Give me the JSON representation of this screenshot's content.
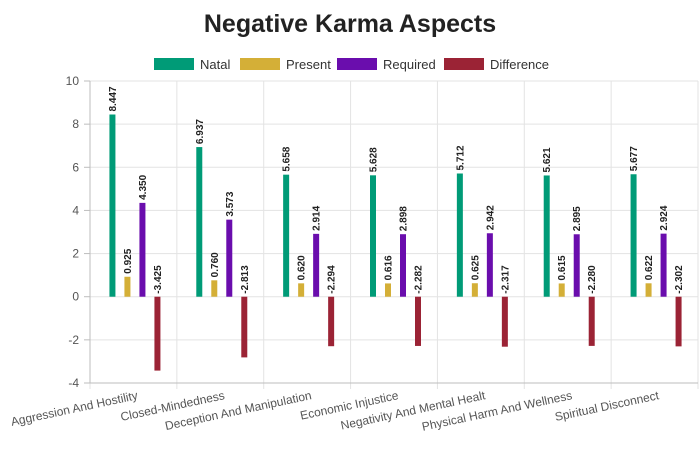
{
  "chart_data": {
    "type": "bar",
    "title": "Negative Karma Aspects",
    "categories": [
      "Aggression And Hostility",
      "Closed-Mindedness",
      "Deception And Manipulation",
      "Economic Injustice",
      "Negativity And Mental Healt",
      "Physical Harm And Wellness",
      "Spiritual Disconnect"
    ],
    "series": [
      {
        "name": "Natal",
        "color": "#009b77",
        "values": [
          8.447,
          6.937,
          5.658,
          5.628,
          5.712,
          5.621,
          5.677
        ],
        "labels": [
          "8.447",
          "6.937",
          "5.658",
          "5.628",
          "5.712",
          "5.621",
          "5.677"
        ]
      },
      {
        "name": "Present",
        "color": "#d4af37",
        "values": [
          0.925,
          0.76,
          0.62,
          0.616,
          0.625,
          0.615,
          0.622
        ],
        "labels": [
          "0.925",
          "0.760",
          "0.620",
          "0.616",
          "0.625",
          "0.615",
          "0.622"
        ]
      },
      {
        "name": "Required",
        "color": "#6a0dad",
        "values": [
          4.35,
          3.573,
          2.914,
          2.898,
          2.942,
          2.895,
          2.924
        ],
        "labels": [
          "4.350",
          "3.573",
          "2.914",
          "2.898",
          "2.942",
          "2.895",
          "2.924"
        ]
      },
      {
        "name": "Difference",
        "color": "#9b2335",
        "values": [
          -3.425,
          -2.813,
          -2.294,
          -2.282,
          -2.317,
          -2.28,
          -2.302
        ],
        "labels": [
          "-3.425",
          "-2.813",
          "-2.294",
          "-2.282",
          "-2.317",
          "-2.280",
          "-2.302"
        ]
      }
    ],
    "xlabel": "",
    "ylabel": "",
    "ylim": [
      -4,
      10
    ],
    "yticks": [
      -4,
      -2,
      0,
      2,
      4,
      6,
      8,
      10
    ],
    "ytick_labels": [
      "-4",
      "-2",
      "0",
      "2",
      "4",
      "6",
      "8",
      "10"
    ],
    "legend_position": "top",
    "grid": true
  }
}
